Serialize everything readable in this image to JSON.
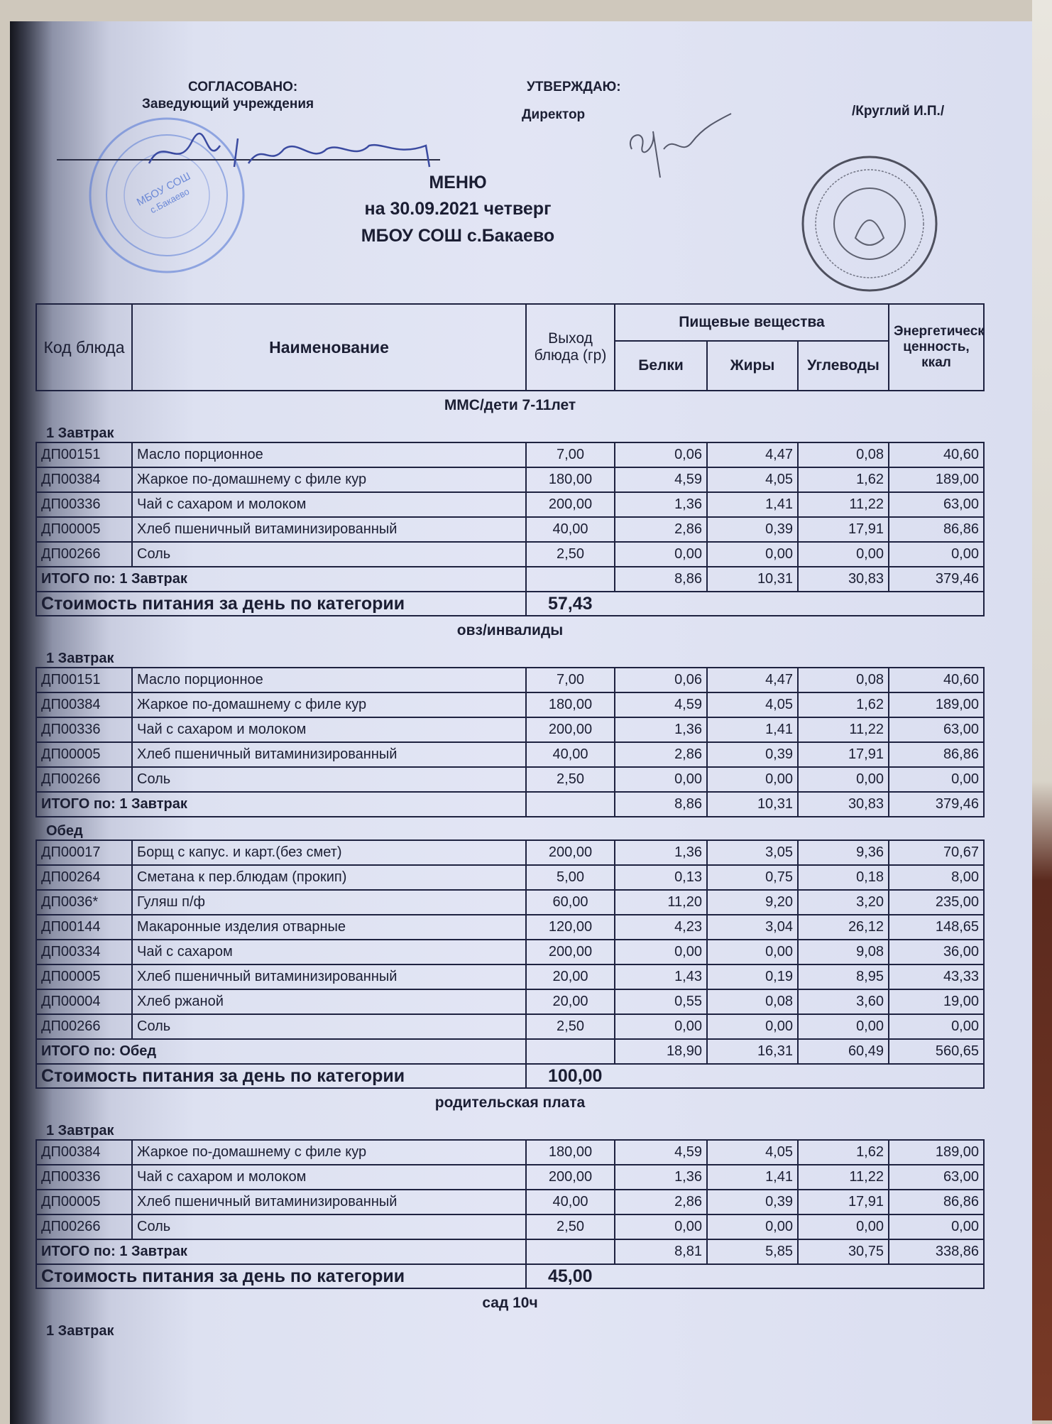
{
  "header": {
    "agreed_label": "СОГЛАСОВАНО:",
    "agreed_position": "Заведующий  учреждения",
    "approve_label": "УТВЕРЖДАЮ:",
    "approve_position": "Директор",
    "approve_name": "/Круглий И.П./",
    "blue_stamp_text": "МБОУ СОШ с.Бакаево",
    "title": "МЕНЮ",
    "date_line": "на 30.09.2021  четверг",
    "school": "МБОУ СОШ с.Бакаево"
  },
  "columns": {
    "code": "Код блюда",
    "name": "Наименование",
    "yield": "Выход блюда (гр)",
    "nutrients": "Пищевые вещества",
    "protein": "Белки",
    "fat": "Жиры",
    "carbs": "Углеводы",
    "energy": "Энергетическая ценность, ккал"
  },
  "cost_label": "Стоимость питания за день по категории",
  "colors": {
    "ink": "#1b1e33",
    "paper": "#dfe3f3",
    "blue_stamp": "#4a6fd0"
  },
  "sections": [
    {
      "title": "ММС/дети 7-11лет",
      "meals": [
        {
          "name": "1 Завтрак",
          "rows": [
            [
              "ДП00151",
              "Масло порционное",
              "7,00",
              "0,06",
              "4,47",
              "0,08",
              "40,60"
            ],
            [
              "ДП00384",
              "Жаркое по-домашнему с филе кур",
              "180,00",
              "4,59",
              "4,05",
              "1,62",
              "189,00"
            ],
            [
              "ДП00336",
              "Чай с сахаром и молоком",
              "200,00",
              "1,36",
              "1,41",
              "11,22",
              "63,00"
            ],
            [
              "ДП00005",
              "Хлеб пшеничный витаминизированный",
              "40,00",
              "2,86",
              "0,39",
              "17,91",
              "86,86"
            ],
            [
              "ДП00266",
              "Соль",
              "2,50",
              "0,00",
              "0,00",
              "0,00",
              "0,00"
            ]
          ],
          "total": [
            "ИТОГО по: 1 Завтрак",
            "8,86",
            "10,31",
            "30,83",
            "379,46"
          ]
        }
      ],
      "cost": "57,43"
    },
    {
      "title": "овз/инвалиды",
      "meals": [
        {
          "name": "1 Завтрак",
          "rows": [
            [
              "ДП00151",
              "Масло порционное",
              "7,00",
              "0,06",
              "4,47",
              "0,08",
              "40,60"
            ],
            [
              "ДП00384",
              "Жаркое по-домашнему с филе кур",
              "180,00",
              "4,59",
              "4,05",
              "1,62",
              "189,00"
            ],
            [
              "ДП00336",
              "Чай с сахаром и молоком",
              "200,00",
              "1,36",
              "1,41",
              "11,22",
              "63,00"
            ],
            [
              "ДП00005",
              "Хлеб пшеничный витаминизированный",
              "40,00",
              "2,86",
              "0,39",
              "17,91",
              "86,86"
            ],
            [
              "ДП00266",
              "Соль",
              "2,50",
              "0,00",
              "0,00",
              "0,00",
              "0,00"
            ]
          ],
          "total": [
            "ИТОГО по: 1 Завтрак",
            "8,86",
            "10,31",
            "30,83",
            "379,46"
          ]
        },
        {
          "name": "Обед",
          "rows": [
            [
              "ДП00017",
              "Борщ с капус. и карт.(без смет)",
              "200,00",
              "1,36",
              "3,05",
              "9,36",
              "70,67"
            ],
            [
              "ДП00264",
              "Сметана к пер.блюдам (прокип)",
              "5,00",
              "0,13",
              "0,75",
              "0,18",
              "8,00"
            ],
            [
              "ДП0036*",
              "Гуляш п/ф",
              "60,00",
              "11,20",
              "9,20",
              "3,20",
              "235,00"
            ],
            [
              "ДП00144",
              "Макаронные изделия отварные",
              "120,00",
              "4,23",
              "3,04",
              "26,12",
              "148,65"
            ],
            [
              "ДП00334",
              "Чай с сахаром",
              "200,00",
              "0,00",
              "0,00",
              "9,08",
              "36,00"
            ],
            [
              "ДП00005",
              "Хлеб пшеничный витаминизированный",
              "20,00",
              "1,43",
              "0,19",
              "8,95",
              "43,33"
            ],
            [
              "ДП00004",
              "Хлеб ржаной",
              "20,00",
              "0,55",
              "0,08",
              "3,60",
              "19,00"
            ],
            [
              "ДП00266",
              "Соль",
              "2,50",
              "0,00",
              "0,00",
              "0,00",
              "0,00"
            ]
          ],
          "total": [
            "ИТОГО по: Обед",
            "18,90",
            "16,31",
            "60,49",
            "560,65"
          ]
        }
      ],
      "cost": "100,00"
    },
    {
      "title": "родительская плата",
      "meals": [
        {
          "name": "1 Завтрак",
          "rows": [
            [
              "ДП00384",
              "Жаркое по-домашнему с филе кур",
              "180,00",
              "4,59",
              "4,05",
              "1,62",
              "189,00"
            ],
            [
              "ДП00336",
              "Чай с сахаром и молоком",
              "200,00",
              "1,36",
              "1,41",
              "11,22",
              "63,00"
            ],
            [
              "ДП00005",
              "Хлеб пшеничный витаминизированный",
              "40,00",
              "2,86",
              "0,39",
              "17,91",
              "86,86"
            ],
            [
              "ДП00266",
              "Соль",
              "2,50",
              "0,00",
              "0,00",
              "0,00",
              "0,00"
            ]
          ],
          "total": [
            "ИТОГО по: 1 Завтрак",
            "8,81",
            "5,85",
            "30,75",
            "338,86"
          ]
        }
      ],
      "cost": "45,00"
    },
    {
      "title": "сад 10ч",
      "meals": [
        {
          "name": "1 Завтрак",
          "rows": []
        }
      ]
    }
  ]
}
